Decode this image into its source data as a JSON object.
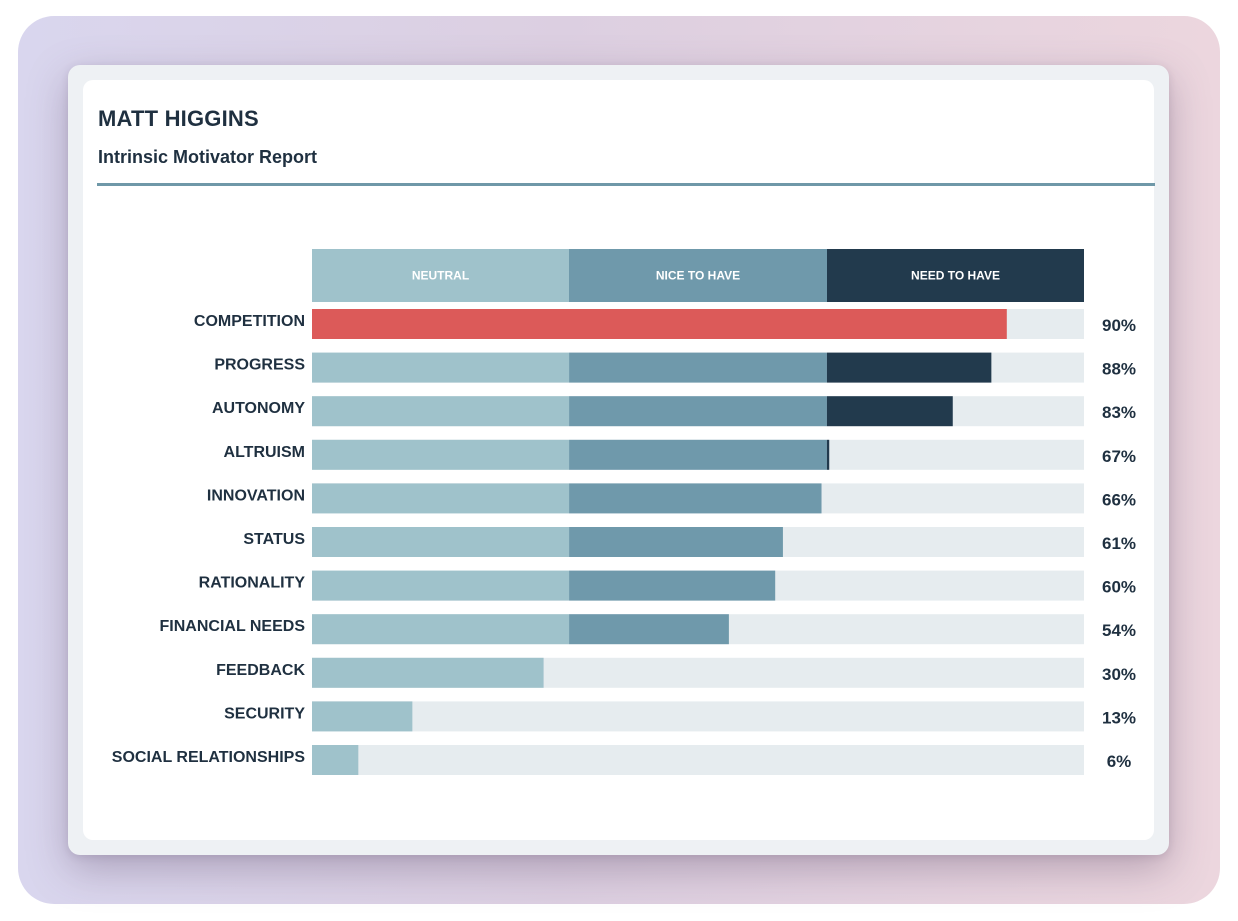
{
  "report": {
    "name": "MATT HIGGINS",
    "subtitle": "Intrinsic Motivator Report"
  },
  "colors": {
    "neutral": "#9fc2cb",
    "nice_to_have": "#6f99ab",
    "need_to_have": "#223a4d",
    "highlight": "#dc5a59",
    "track": "#e6ecef",
    "text": "#1f3040",
    "band_text": "#ffffff"
  },
  "chart_data": {
    "type": "bar",
    "orientation": "horizontal",
    "title": "Intrinsic Motivator Report",
    "xlim": [
      0,
      100
    ],
    "unit": "%",
    "bands": [
      {
        "label": "NEUTRAL",
        "from": 0,
        "to": 33.3
      },
      {
        "label": "NICE TO HAVE",
        "from": 33.3,
        "to": 66.7
      },
      {
        "label": "NEED TO HAVE",
        "from": 66.7,
        "to": 100
      }
    ],
    "categories": [
      "COMPETITION",
      "PROGRESS",
      "AUTONOMY",
      "ALTRUISM",
      "INNOVATION",
      "STATUS",
      "RATIONALITY",
      "FINANCIAL NEEDS",
      "FEEDBACK",
      "SECURITY",
      "SOCIAL RELATIONSHIPS"
    ],
    "values": [
      90,
      88,
      83,
      67,
      66,
      61,
      60,
      54,
      30,
      13,
      6
    ],
    "value_labels": [
      "90%",
      "88%",
      "83%",
      "67%",
      "66%",
      "61%",
      "60%",
      "54%",
      "30%",
      "13%",
      "6%"
    ],
    "highlighted": [
      "COMPETITION"
    ]
  }
}
